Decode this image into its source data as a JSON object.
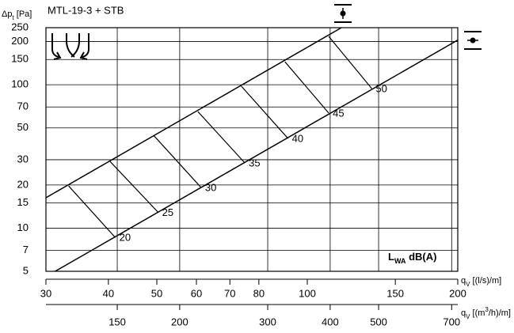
{
  "chart_data": {
    "type": "line",
    "title": "MTL-19-3 + STB",
    "ylabel": [
      "Δp",
      "t",
      " [Pa]"
    ],
    "xlabel": [
      "q",
      "V",
      " [(l/s)/m]"
    ],
    "x2label": [
      "q",
      "V",
      " [(m",
      "3",
      "/h)/m]"
    ],
    "legend_label": [
      "L",
      "WA",
      " dB(A)"
    ],
    "log_x": true,
    "log_y": true,
    "grid": true,
    "color": "#000000",
    "xlim": [
      30,
      200
    ],
    "xticks": [
      30,
      40,
      50,
      60,
      70,
      80,
      100,
      150,
      200
    ],
    "x2lim": [
      108,
      720
    ],
    "x2ticks": [
      150,
      200,
      300,
      400,
      500,
      700
    ],
    "ylim": [
      5,
      250
    ],
    "yticks": [
      5,
      7,
      10,
      15,
      20,
      30,
      50,
      70,
      100,
      150,
      200,
      250
    ],
    "series": [
      {
        "x": [
          31.3,
          200
        ],
        "values": [
          5,
          205
        ]
      },
      {
        "x": [
          30,
          117
        ],
        "values": [
          16.3,
          250
        ]
      }
    ],
    "isolines": [
      {
        "value": 20,
        "q": [
          41.3,
          33.3
        ],
        "dp": [
          8.6,
          19.7
        ]
      },
      {
        "value": 25,
        "q": [
          50.3,
          40.3
        ],
        "dp": [
          12.9,
          29.2
        ]
      },
      {
        "value": 30,
        "q": [
          61.3,
          49.4
        ],
        "dp": [
          19.2,
          43.9
        ]
      },
      {
        "value": 35,
        "q": [
          75,
          60.4
        ],
        "dp": [
          28.5,
          65
        ]
      },
      {
        "value": 40,
        "q": [
          91.5,
          73.8
        ],
        "dp": [
          42.2,
          97.7
        ]
      },
      {
        "value": 45,
        "q": [
          110.4,
          90.2
        ],
        "dp": [
          63.4,
          144.7
        ]
      },
      {
        "value": 50,
        "q": [
          134.6,
          110.4
        ],
        "dp": [
          94,
          217
        ]
      }
    ]
  }
}
